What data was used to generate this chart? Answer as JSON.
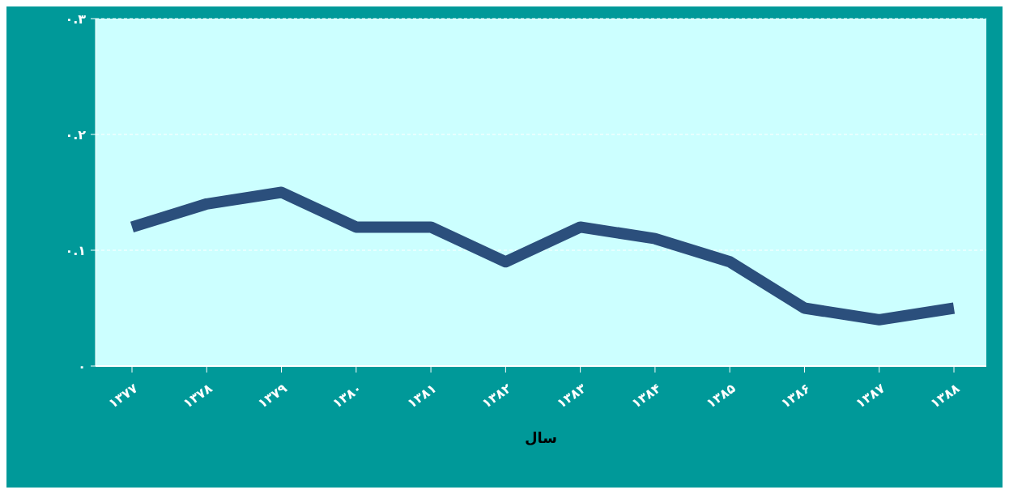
{
  "chart_data": {
    "type": "line",
    "xlabel": "سال",
    "categories": [
      "۱۳۷۷",
      "۱۳۷۸",
      "۱۳۷۹",
      "۱۳۸۰",
      "۱۳۸۱",
      "۱۳۸۲",
      "۱۳۸۳",
      "۱۳۸۴",
      "۱۳۸۵",
      "۱۳۸۶",
      "۱۳۸۷",
      "۱۳۸۸"
    ],
    "series": [
      {
        "color": "#2b4f7c",
        "values": [
          0.12,
          0.14,
          0.15,
          0.12,
          0.12,
          0.09,
          0.12,
          0.11,
          0.09,
          0.05,
          0.04,
          0.05
        ]
      }
    ],
    "ylim": [
      0,
      0.3
    ],
    "yticks": [
      {
        "value": 0,
        "label": "۰"
      },
      {
        "value": 0.1,
        "label": "۰.۱"
      },
      {
        "value": 0.2,
        "label": "۰.۲"
      },
      {
        "value": 0.3,
        "label": "۰.۳"
      }
    ],
    "grid": "y",
    "marker": "none",
    "line_style": "solid"
  }
}
